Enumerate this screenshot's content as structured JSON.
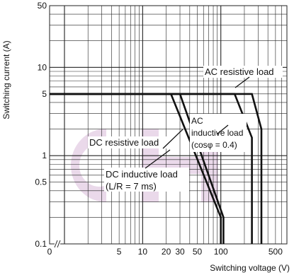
{
  "chart_data": {
    "type": "line",
    "xlabel": "Switching voltage (V)",
    "ylabel": "Switching current (A)",
    "x_scale": "log",
    "y_scale": "log",
    "x_axis_break": true,
    "xlim": [
      0,
      700
    ],
    "ylim": [
      0.1,
      50
    ],
    "x_ticks": [
      {
        "value": 0,
        "label": "0"
      },
      {
        "value": 5,
        "label": "5"
      },
      {
        "value": 10,
        "label": "10"
      },
      {
        "value": 20,
        "label": "20"
      },
      {
        "value": 30,
        "label": "30"
      },
      {
        "value": 50,
        "label": "50"
      },
      {
        "value": 100,
        "label": "100"
      },
      {
        "value": 500,
        "label": "500"
      }
    ],
    "y_ticks": [
      {
        "value": 0.1,
        "label": "0.1"
      },
      {
        "value": 0.5,
        "label": "0.5"
      },
      {
        "value": 1,
        "label": "1"
      },
      {
        "value": 5,
        "label": "5"
      },
      {
        "value": 10,
        "label": "10"
      },
      {
        "value": 50,
        "label": "50"
      }
    ],
    "grid": true,
    "colors": {
      "grid": "#222222",
      "curve": "#111111",
      "watermark": "#ead9ea"
    },
    "series": [
      {
        "name": "DC resistive load",
        "x": [
          0,
          30,
          108,
          108
        ],
        "y": [
          5,
          5,
          0.2,
          0.1
        ]
      },
      {
        "name": "DC inductive load (L/R = 7 ms)",
        "x": [
          0,
          23,
          100,
          100
        ],
        "y": [
          5,
          5,
          0.2,
          0.1
        ]
      },
      {
        "name": "AC inductive load (cosφ = 0.4)",
        "x": [
          0,
          150,
          250,
          250
        ],
        "y": [
          5,
          5,
          1.6,
          0.1
        ]
      },
      {
        "name": "AC resistive load",
        "x": [
          0,
          250,
          330,
          330
        ],
        "y": [
          5,
          5,
          2,
          0.1
        ]
      }
    ],
    "annotations": {
      "ac_resistive": [
        "AC resistive load"
      ],
      "ac_inductive": [
        "AC",
        "inductive load",
        "(cosφ = 0.4)"
      ],
      "dc_resistive": [
        "DC resistive load"
      ],
      "dc_inductive": [
        "DC inductive load",
        "(L/R = 7 ms)"
      ]
    }
  }
}
